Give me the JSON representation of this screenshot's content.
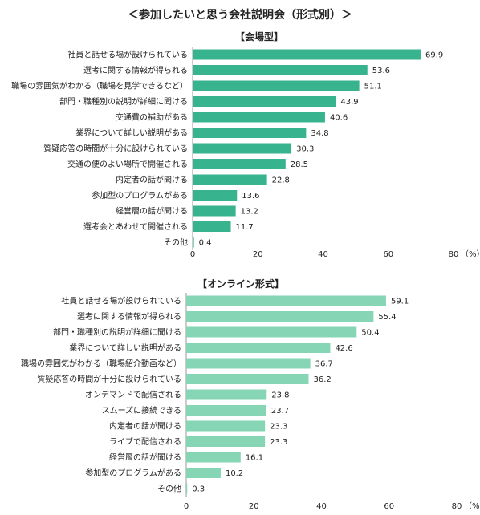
{
  "title": "＜参加したいと思う会社説明会（形式別）＞",
  "chart_data": [
    {
      "type": "bar",
      "orientation": "horizontal",
      "title": "【会場型】",
      "unit": "（%）",
      "xlim": [
        0,
        80
      ],
      "xticks": [
        0,
        20,
        40,
        60,
        80
      ],
      "color": "#37b38d",
      "categories": [
        "社員と話せる場が設けられている",
        "選考に関する情報が得られる",
        "職場の雰囲気がわかる（職場を見学できるなど）",
        "部門・職種別の説明が詳細に聞ける",
        "交通費の補助がある",
        "業界について詳しい説明がある",
        "質疑応答の時間が十分に設けられている",
        "交通の便のよい場所で開催される",
        "内定者の話が聞ける",
        "参加型のプログラムがある",
        "経営層の話が聞ける",
        "選考会とあわせて開催される",
        "その他"
      ],
      "values": [
        69.9,
        53.6,
        51.1,
        43.9,
        40.6,
        34.8,
        30.3,
        28.5,
        22.8,
        13.6,
        13.2,
        11.7,
        0.4
      ],
      "value_labels": [
        "69.9",
        "53.6",
        "51.1",
        "43.9",
        "40.6",
        "34.8",
        "30.3",
        "28.5",
        "22.8",
        "13.6",
        "13.2",
        "11.7",
        "0.4"
      ]
    },
    {
      "type": "bar",
      "orientation": "horizontal",
      "title": "【オンライン形式】",
      "unit": "（%）",
      "xlim": [
        0,
        80
      ],
      "xticks": [
        0,
        20,
        40,
        60,
        80
      ],
      "color": "#86d6b6",
      "categories": [
        "社員と話せる場が設けられている",
        "選考に関する情報が得られる",
        "部門・職種別の説明が詳細に聞ける",
        "業界について詳しい説明がある",
        "職場の雰囲気がわかる（職場紹介動画など）",
        "質疑応答の時間が十分に設けられている",
        "オンデマンドで配信される",
        "スムーズに接続できる",
        "内定者の話が聞ける",
        "ライブで配信される",
        "経営層の話が聞ける",
        "参加型のプログラムがある",
        "その他"
      ],
      "values": [
        59.1,
        55.4,
        50.4,
        42.6,
        36.7,
        36.2,
        23.8,
        23.7,
        23.3,
        23.3,
        16.1,
        10.2,
        0.3
      ],
      "value_labels": [
        "59.1",
        "55.4",
        "50.4",
        "42.6",
        "36.7",
        "36.2",
        "23.8",
        "23.7",
        "23.3",
        "23.3",
        "16.1",
        "10.2",
        "0.3"
      ]
    }
  ]
}
